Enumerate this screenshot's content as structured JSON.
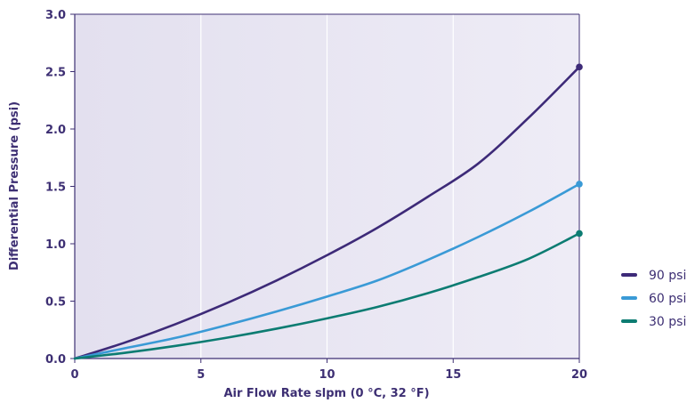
{
  "chart_data": {
    "type": "line",
    "title": "",
    "xlabel": "Air Flow Rate slpm (0 °C, 32 °F)",
    "ylabel": "Differential Pressure (psi)",
    "xlim": [
      0,
      20
    ],
    "ylim": [
      0,
      3.0
    ],
    "x_ticks": [
      "0",
      "5",
      "10",
      "15",
      "20"
    ],
    "y_ticks": [
      "0.0",
      "0.5",
      "1.0",
      "1.5",
      "2.0",
      "2.5",
      "3.0"
    ],
    "grid": "vertical",
    "legend_position": "right",
    "x": [
      0,
      2,
      4,
      6,
      8,
      10,
      12,
      14,
      16,
      18,
      20
    ],
    "series": [
      {
        "name": "90 psi",
        "color": "#3d2a78",
        "values": [
          0,
          0.14,
          0.3,
          0.48,
          0.68,
          0.9,
          1.14,
          1.41,
          1.7,
          2.1,
          2.54
        ],
        "end_marker": true
      },
      {
        "name": "60 psi",
        "color": "#3a9ad6",
        "values": [
          0,
          0.09,
          0.18,
          0.29,
          0.41,
          0.54,
          0.68,
          0.86,
          1.06,
          1.28,
          1.52
        ],
        "end_marker": true
      },
      {
        "name": "30 psi",
        "color": "#0c7c72",
        "values": [
          0,
          0.05,
          0.11,
          0.18,
          0.26,
          0.35,
          0.45,
          0.57,
          0.71,
          0.87,
          1.09
        ],
        "end_marker": true
      }
    ]
  }
}
